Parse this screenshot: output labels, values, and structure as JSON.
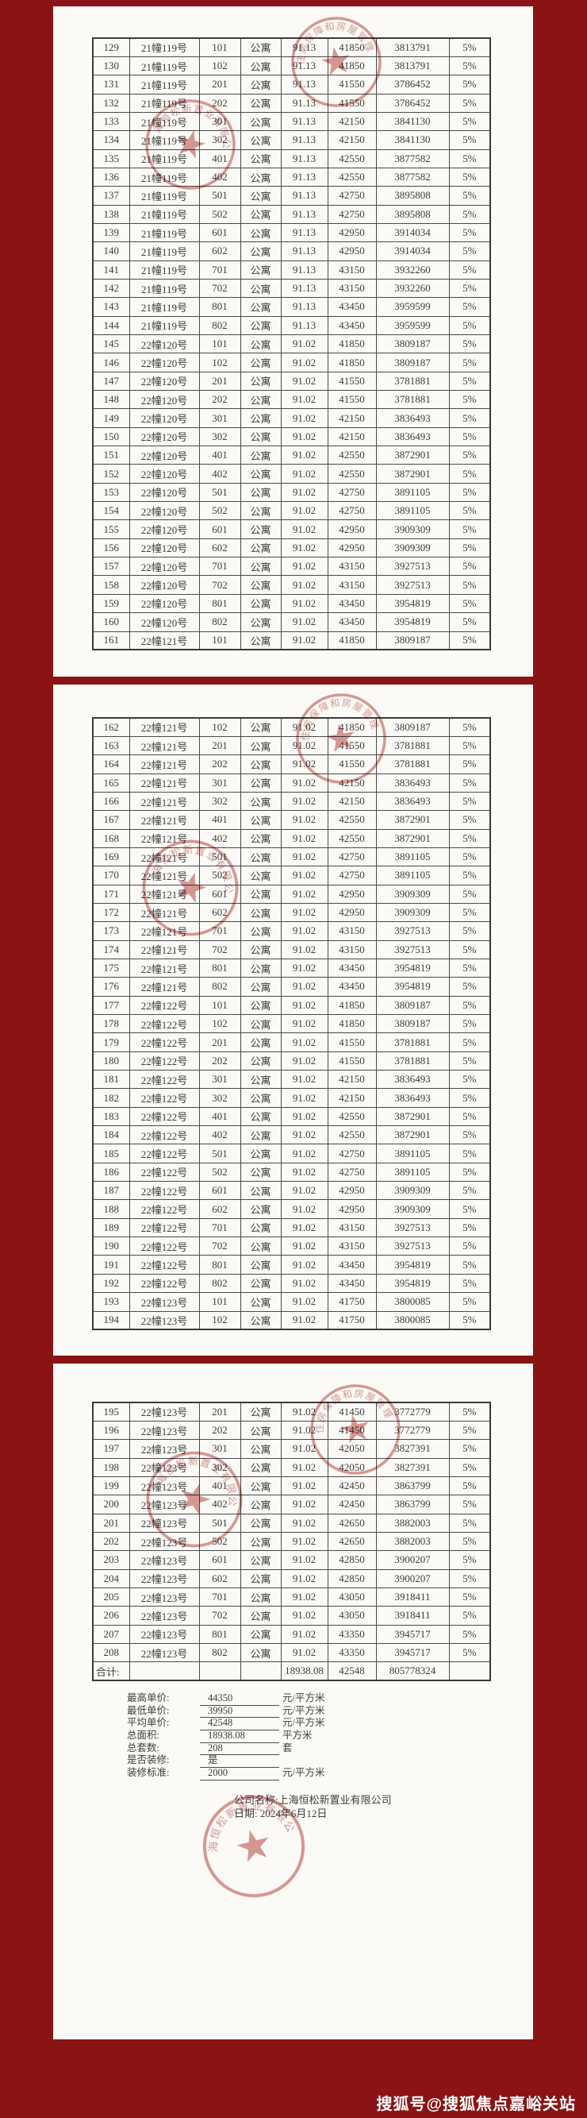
{
  "colors": {
    "background": "#8a1414",
    "panel": "#fbfaf6",
    "stamp": "#c25a55",
    "grid": "#4a4a4a"
  },
  "watermark": "搜狐号@搜狐焦点嘉峪关站",
  "stamps": {
    "authority_arc": "区住房保障和房屋管理局",
    "company_arc": "上海恒松新置业有限公司"
  },
  "signature": {
    "company_line": "公司名称:上海恒松新置业有限公司",
    "date_line": "日期: 2024年6月12日"
  },
  "summary": {
    "items": [
      {
        "label": "最高单价:",
        "value": "44350",
        "unit": "元/平方米"
      },
      {
        "label": "最低单价:",
        "value": "39950",
        "unit": "元/平方米"
      },
      {
        "label": "平均单价:",
        "value": "42548",
        "unit": "元/平方米"
      },
      {
        "label": "总面积:",
        "value": "18938.08",
        "unit": "平方米"
      },
      {
        "label": "总套数:",
        "value": "208",
        "unit": "套"
      },
      {
        "label": "是否装修:",
        "value": "是",
        "unit": ""
      },
      {
        "label": "装修标准:",
        "value": "2000",
        "unit": "元/平方米"
      }
    ]
  },
  "panels": [
    {
      "rows": [
        [
          "129",
          "21幢119号",
          "101",
          "公寓",
          "91.13",
          "41850",
          "3813791",
          "5%"
        ],
        [
          "130",
          "21幢119号",
          "102",
          "公寓",
          "91.13",
          "41850",
          "3813791",
          "5%"
        ],
        [
          "131",
          "21幢119号",
          "201",
          "公寓",
          "91.13",
          "41550",
          "3786452",
          "5%"
        ],
        [
          "132",
          "21幢119号",
          "202",
          "公寓",
          "91.13",
          "41550",
          "3786452",
          "5%"
        ],
        [
          "133",
          "21幢119号",
          "301",
          "公寓",
          "91.13",
          "42150",
          "3841130",
          "5%"
        ],
        [
          "134",
          "21幢119号",
          "302",
          "公寓",
          "91.13",
          "42150",
          "3841130",
          "5%"
        ],
        [
          "135",
          "21幢119号",
          "401",
          "公寓",
          "91.13",
          "42550",
          "3877582",
          "5%"
        ],
        [
          "136",
          "21幢119号",
          "402",
          "公寓",
          "91.13",
          "42550",
          "3877582",
          "5%"
        ],
        [
          "137",
          "21幢119号",
          "501",
          "公寓",
          "91.13",
          "42750",
          "3895808",
          "5%"
        ],
        [
          "138",
          "21幢119号",
          "502",
          "公寓",
          "91.13",
          "42750",
          "3895808",
          "5%"
        ],
        [
          "139",
          "21幢119号",
          "601",
          "公寓",
          "91.13",
          "42950",
          "3914034",
          "5%"
        ],
        [
          "140",
          "21幢119号",
          "602",
          "公寓",
          "91.13",
          "42950",
          "3914034",
          "5%"
        ],
        [
          "141",
          "21幢119号",
          "701",
          "公寓",
          "91.13",
          "43150",
          "3932260",
          "5%"
        ],
        [
          "142",
          "21幢119号",
          "702",
          "公寓",
          "91.13",
          "43150",
          "3932260",
          "5%"
        ],
        [
          "143",
          "21幢119号",
          "801",
          "公寓",
          "91.13",
          "43450",
          "3959599",
          "5%"
        ],
        [
          "144",
          "21幢119号",
          "802",
          "公寓",
          "91.13",
          "43450",
          "3959599",
          "5%"
        ],
        [
          "145",
          "22幢120号",
          "101",
          "公寓",
          "91.02",
          "41850",
          "3809187",
          "5%"
        ],
        [
          "146",
          "22幢120号",
          "102",
          "公寓",
          "91.02",
          "41850",
          "3809187",
          "5%"
        ],
        [
          "147",
          "22幢120号",
          "201",
          "公寓",
          "91.02",
          "41550",
          "3781881",
          "5%"
        ],
        [
          "148",
          "22幢120号",
          "202",
          "公寓",
          "91.02",
          "41550",
          "3781881",
          "5%"
        ],
        [
          "149",
          "22幢120号",
          "301",
          "公寓",
          "91.02",
          "42150",
          "3836493",
          "5%"
        ],
        [
          "150",
          "22幢120号",
          "302",
          "公寓",
          "91.02",
          "42150",
          "3836493",
          "5%"
        ],
        [
          "151",
          "22幢120号",
          "401",
          "公寓",
          "91.02",
          "42550",
          "3872901",
          "5%"
        ],
        [
          "152",
          "22幢120号",
          "402",
          "公寓",
          "91.02",
          "42550",
          "3872901",
          "5%"
        ],
        [
          "153",
          "22幢120号",
          "501",
          "公寓",
          "91.02",
          "42750",
          "3891105",
          "5%"
        ],
        [
          "154",
          "22幢120号",
          "502",
          "公寓",
          "91.02",
          "42750",
          "3891105",
          "5%"
        ],
        [
          "155",
          "22幢120号",
          "601",
          "公寓",
          "91.02",
          "42950",
          "3909309",
          "5%"
        ],
        [
          "156",
          "22幢120号",
          "602",
          "公寓",
          "91.02",
          "42950",
          "3909309",
          "5%"
        ],
        [
          "157",
          "22幢120号",
          "701",
          "公寓",
          "91.02",
          "43150",
          "3927513",
          "5%"
        ],
        [
          "158",
          "22幢120号",
          "702",
          "公寓",
          "91.02",
          "43150",
          "3927513",
          "5%"
        ],
        [
          "159",
          "22幢120号",
          "801",
          "公寓",
          "91.02",
          "43450",
          "3954819",
          "5%"
        ],
        [
          "160",
          "22幢120号",
          "802",
          "公寓",
          "91.02",
          "43450",
          "3954819",
          "5%"
        ],
        [
          "161",
          "22幢121号",
          "101",
          "公寓",
          "91.02",
          "41850",
          "3809187",
          "5%"
        ]
      ]
    },
    {
      "rows": [
        [
          "162",
          "22幢121号",
          "102",
          "公寓",
          "91.02",
          "41850",
          "3809187",
          "5%"
        ],
        [
          "163",
          "22幢121号",
          "201",
          "公寓",
          "91.02",
          "41550",
          "3781881",
          "5%"
        ],
        [
          "164",
          "22幢121号",
          "202",
          "公寓",
          "91.02",
          "41550",
          "3781881",
          "5%"
        ],
        [
          "165",
          "22幢121号",
          "301",
          "公寓",
          "91.02",
          "42150",
          "3836493",
          "5%"
        ],
        [
          "166",
          "22幢121号",
          "302",
          "公寓",
          "91.02",
          "42150",
          "3836493",
          "5%"
        ],
        [
          "167",
          "22幢121号",
          "401",
          "公寓",
          "91.02",
          "42550",
          "3872901",
          "5%"
        ],
        [
          "168",
          "22幢121号",
          "402",
          "公寓",
          "91.02",
          "42550",
          "3872901",
          "5%"
        ],
        [
          "169",
          "22幢121号",
          "501",
          "公寓",
          "91.02",
          "42750",
          "3891105",
          "5%"
        ],
        [
          "170",
          "22幢121号",
          "502",
          "公寓",
          "91.02",
          "42750",
          "3891105",
          "5%"
        ],
        [
          "171",
          "22幢121号",
          "601",
          "公寓",
          "91.02",
          "42950",
          "3909309",
          "5%"
        ],
        [
          "172",
          "22幢121号",
          "602",
          "公寓",
          "91.02",
          "42950",
          "3909309",
          "5%"
        ],
        [
          "173",
          "22幢121号",
          "701",
          "公寓",
          "91.02",
          "43150",
          "3927513",
          "5%"
        ],
        [
          "174",
          "22幢121号",
          "702",
          "公寓",
          "91.02",
          "43150",
          "3927513",
          "5%"
        ],
        [
          "175",
          "22幢121号",
          "801",
          "公寓",
          "91.02",
          "43450",
          "3954819",
          "5%"
        ],
        [
          "176",
          "22幢121号",
          "802",
          "公寓",
          "91.02",
          "43450",
          "3954819",
          "5%"
        ],
        [
          "177",
          "22幢122号",
          "101",
          "公寓",
          "91.02",
          "41850",
          "3809187",
          "5%"
        ],
        [
          "178",
          "22幢122号",
          "102",
          "公寓",
          "91.02",
          "41850",
          "3809187",
          "5%"
        ],
        [
          "179",
          "22幢122号",
          "201",
          "公寓",
          "91.02",
          "41550",
          "3781881",
          "5%"
        ],
        [
          "180",
          "22幢122号",
          "202",
          "公寓",
          "91.02",
          "41550",
          "3781881",
          "5%"
        ],
        [
          "181",
          "22幢122号",
          "301",
          "公寓",
          "91.02",
          "42150",
          "3836493",
          "5%"
        ],
        [
          "182",
          "22幢122号",
          "302",
          "公寓",
          "91.02",
          "42150",
          "3836493",
          "5%"
        ],
        [
          "183",
          "22幢122号",
          "401",
          "公寓",
          "91.02",
          "42550",
          "3872901",
          "5%"
        ],
        [
          "184",
          "22幢122号",
          "402",
          "公寓",
          "91.02",
          "42550",
          "3872901",
          "5%"
        ],
        [
          "185",
          "22幢122号",
          "501",
          "公寓",
          "91.02",
          "42750",
          "3891105",
          "5%"
        ],
        [
          "186",
          "22幢122号",
          "502",
          "公寓",
          "91.02",
          "42750",
          "3891105",
          "5%"
        ],
        [
          "187",
          "22幢122号",
          "601",
          "公寓",
          "91.02",
          "42950",
          "3909309",
          "5%"
        ],
        [
          "188",
          "22幢122号",
          "602",
          "公寓",
          "91.02",
          "42950",
          "3909309",
          "5%"
        ],
        [
          "189",
          "22幢122号",
          "701",
          "公寓",
          "91.02",
          "43150",
          "3927513",
          "5%"
        ],
        [
          "190",
          "22幢122号",
          "702",
          "公寓",
          "91.02",
          "43150",
          "3927513",
          "5%"
        ],
        [
          "191",
          "22幢122号",
          "801",
          "公寓",
          "91.02",
          "43450",
          "3954819",
          "5%"
        ],
        [
          "192",
          "22幢122号",
          "802",
          "公寓",
          "91.02",
          "43450",
          "3954819",
          "5%"
        ],
        [
          "193",
          "22幢123号",
          "101",
          "公寓",
          "91.02",
          "41750",
          "3800085",
          "5%"
        ],
        [
          "194",
          "22幢123号",
          "102",
          "公寓",
          "91.02",
          "41750",
          "3800085",
          "5%"
        ]
      ]
    },
    {
      "rows": [
        [
          "195",
          "22幢123号",
          "201",
          "公寓",
          "91.02",
          "41450",
          "3772779",
          "5%"
        ],
        [
          "196",
          "22幢123号",
          "202",
          "公寓",
          "91.02",
          "41450",
          "3772779",
          "5%"
        ],
        [
          "197",
          "22幢123号",
          "301",
          "公寓",
          "91.02",
          "42050",
          "3827391",
          "5%"
        ],
        [
          "198",
          "22幢123号",
          "302",
          "公寓",
          "91.02",
          "42050",
          "3827391",
          "5%"
        ],
        [
          "199",
          "22幢123号",
          "401",
          "公寓",
          "91.02",
          "42450",
          "3863799",
          "5%"
        ],
        [
          "200",
          "22幢123号",
          "402",
          "公寓",
          "91.02",
          "42450",
          "3863799",
          "5%"
        ],
        [
          "201",
          "22幢123号",
          "501",
          "公寓",
          "91.02",
          "42650",
          "3882003",
          "5%"
        ],
        [
          "202",
          "22幢123号",
          "502",
          "公寓",
          "91.02",
          "42650",
          "3882003",
          "5%"
        ],
        [
          "203",
          "22幢123号",
          "601",
          "公寓",
          "91.02",
          "42850",
          "3900207",
          "5%"
        ],
        [
          "204",
          "22幢123号",
          "602",
          "公寓",
          "91.02",
          "42850",
          "3900207",
          "5%"
        ],
        [
          "205",
          "22幢123号",
          "701",
          "公寓",
          "91.02",
          "43050",
          "3918411",
          "5%"
        ],
        [
          "206",
          "22幢123号",
          "702",
          "公寓",
          "91.02",
          "43050",
          "3918411",
          "5%"
        ],
        [
          "207",
          "22幢123号",
          "801",
          "公寓",
          "91.02",
          "43350",
          "3945717",
          "5%"
        ],
        [
          "208",
          "22幢123号",
          "802",
          "公寓",
          "91.02",
          "43350",
          "3945717",
          "5%"
        ]
      ],
      "total_rows": [
        [
          "合计:",
          "",
          "",
          "",
          "18938.08",
          "42548",
          "805778324",
          ""
        ]
      ]
    }
  ]
}
